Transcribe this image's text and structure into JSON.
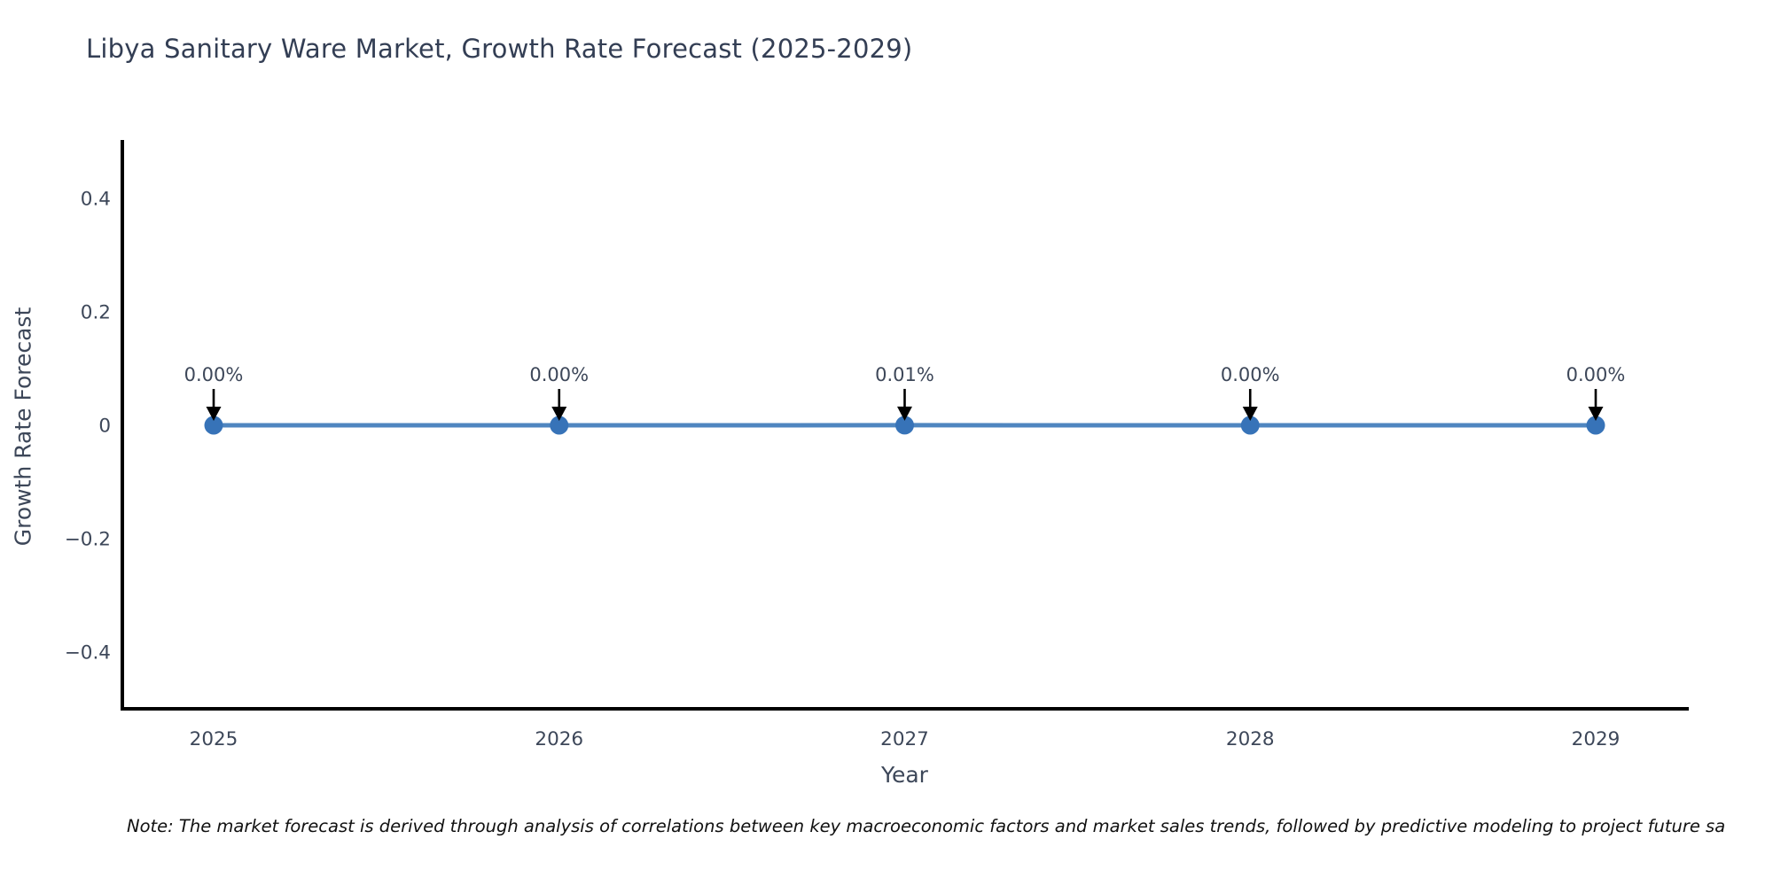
{
  "title": "Libya Sanitary Ware Market, Growth Rate Forecast (2025-2029)",
  "note": "Note: The market forecast is derived through analysis of correlations between key macroeconomic factors and market sales trends, followed by predictive modeling to project future sa",
  "colors": {
    "background": "#ffffff",
    "title_text": "#333e54",
    "axis_text": "#3d4759",
    "spine": "#000000",
    "line": "#4f86c0",
    "marker": "#3773b8",
    "annotation_text": "#3d4759",
    "arrow": "#000000"
  },
  "chart_data": {
    "type": "line",
    "title": "Libya Sanitary Ware Market, Growth Rate Forecast (2025-2029)",
    "xlabel": "Year",
    "ylabel": "Growth Rate Forecast",
    "categories": [
      "2025",
      "2026",
      "2027",
      "2028",
      "2029"
    ],
    "values": [
      0.0,
      0.0,
      0.0001,
      0.0,
      0.0
    ],
    "point_labels": [
      "0.00%",
      "0.00%",
      "0.01%",
      "0.00%",
      "0.00%"
    ],
    "ylim": [
      -0.5,
      0.5
    ],
    "yticks": [
      -0.4,
      -0.2,
      0,
      0.2,
      0.4
    ],
    "ytick_labels": [
      "−0.4",
      "−0.2",
      "0",
      "0.2",
      "0.4"
    ],
    "grid": false,
    "legend": "none"
  }
}
